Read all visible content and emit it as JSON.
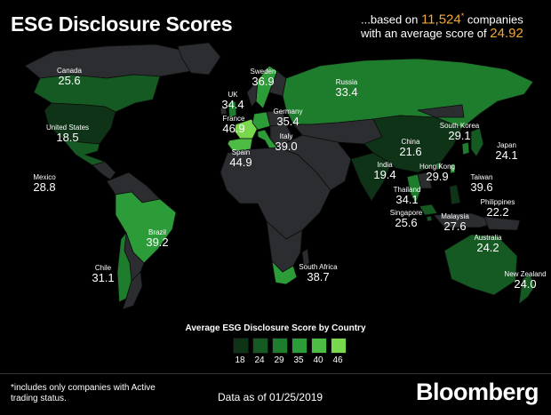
{
  "header": {
    "title": "ESG Disclosure Scores",
    "summary_prefix": "...based on ",
    "company_count": "11,524",
    "asterisk": "*",
    "summary_mid": " companies with an average score of ",
    "average_score": "24.92"
  },
  "colors": {
    "background": "#000000",
    "no_data_land": "#2b2d30",
    "accent": "#f2a93b",
    "scale": [
      "#0f3316",
      "#155a22",
      "#1e7d2c",
      "#2c9c39",
      "#4dbb44",
      "#79d94c"
    ]
  },
  "countries": [
    {
      "name": "Canada",
      "score": "25.6"
    },
    {
      "name": "United States",
      "score": "18.5"
    },
    {
      "name": "Mexico",
      "score": "28.8"
    },
    {
      "name": "Brazil",
      "score": "39.2"
    },
    {
      "name": "Chile",
      "score": "31.1"
    },
    {
      "name": "UK",
      "score": "34.4"
    },
    {
      "name": "France",
      "score": "46.9"
    },
    {
      "name": "Spain",
      "score": "44.9"
    },
    {
      "name": "Sweden",
      "score": "36.9"
    },
    {
      "name": "Germany",
      "score": "35.4"
    },
    {
      "name": "Italy",
      "score": "39.0"
    },
    {
      "name": "Russia",
      "score": "33.4"
    },
    {
      "name": "South Africa",
      "score": "38.7"
    },
    {
      "name": "India",
      "score": "19.4"
    },
    {
      "name": "China",
      "score": "21.6"
    },
    {
      "name": "South Korea",
      "score": "29.1"
    },
    {
      "name": "Japan",
      "score": "24.1"
    },
    {
      "name": "Hong Kong",
      "score": "29.9"
    },
    {
      "name": "Taiwan",
      "score": "39.6"
    },
    {
      "name": "Thailand",
      "score": "34.1"
    },
    {
      "name": "Singapore",
      "score": "25.6"
    },
    {
      "name": "Malaysia",
      "score": "27.6"
    },
    {
      "name": "Philippines",
      "score": "22.2"
    },
    {
      "name": "Australia",
      "score": "24.2"
    },
    {
      "name": "New Zealand",
      "score": "24.0"
    }
  ],
  "legend": {
    "title": "Average ESG Disclosure Score by Country",
    "ticks": [
      "18",
      "24",
      "29",
      "35",
      "40",
      "46"
    ]
  },
  "footer": {
    "footnote": "*includes only companies with Active trading status.",
    "as_of": "Data as of 01/25/2019",
    "brand": "Bloomberg"
  }
}
